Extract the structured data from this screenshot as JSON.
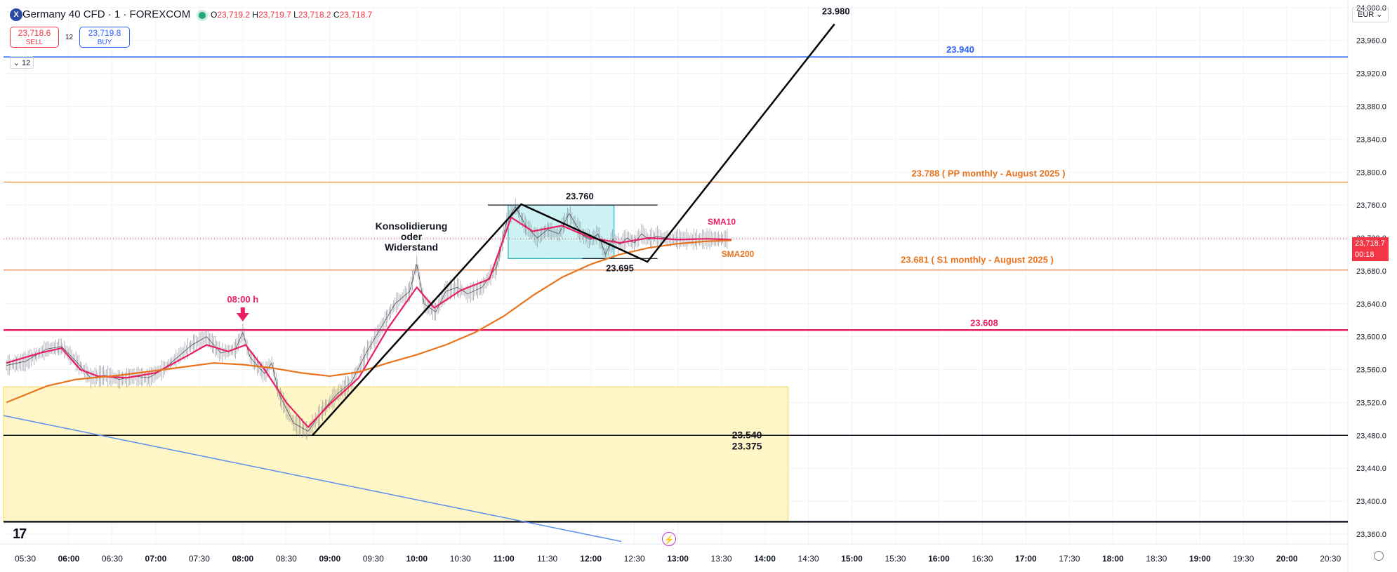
{
  "header": {
    "title": "Germany 40 CFD · 1 · FOREXCOM",
    "logo_letter": "X",
    "ohlc": {
      "o_label": "O",
      "o": "23,719.2",
      "h_label": "H",
      "h": "23,719.7",
      "l_label": "L",
      "l": "23,718.2",
      "c_label": "C",
      "c": "23,718.7"
    },
    "sell_price": "23,718.6",
    "sell_label": "SELL",
    "buy_price": "23,719.8",
    "buy_label": "BUY",
    "spread": "12",
    "interval": "12",
    "currency": "EUR"
  },
  "price_tag": {
    "price": "23,718.7",
    "countdown": "00:18",
    "color": "#f23645"
  },
  "chart_data": {
    "type": "line",
    "instrument": "Germany 40 CFD",
    "y_ticks": [
      "24,000.0",
      "23,960.0",
      "23,920.0",
      "23,880.0",
      "23,840.0",
      "23,800.0",
      "23,760.0",
      "23,720.0",
      "23,680.0",
      "23,640.0",
      "23,600.0",
      "23,560.0",
      "23,520.0",
      "23,480.0",
      "23,440.0",
      "23,400.0",
      "23,360.0"
    ],
    "ylim": [
      23348,
      24005
    ],
    "x_ticks": [
      "05:30",
      "06:00",
      "06:30",
      "07:00",
      "07:30",
      "08:00",
      "08:30",
      "09:00",
      "09:30",
      "10:00",
      "10:30",
      "11:00",
      "11:30",
      "12:00",
      "12:30",
      "13:00",
      "13:30",
      "14:00",
      "14:30",
      "15:00",
      "15:30",
      "16:00",
      "16:30",
      "17:00",
      "17:30",
      "18:00",
      "18:30",
      "19:00",
      "19:30",
      "20:00",
      "20:30"
    ],
    "x_tick_minutes": [
      330,
      360,
      390,
      420,
      450,
      480,
      510,
      540,
      570,
      600,
      630,
      660,
      690,
      720,
      750,
      780,
      810,
      840,
      870,
      900,
      930,
      960,
      990,
      1020,
      1050,
      1080,
      1110,
      1140,
      1170,
      1200,
      1230
    ],
    "xlim": [
      315,
      1242
    ],
    "price_series": {
      "color": "#787b86",
      "points": [
        [
          317,
          23565
        ],
        [
          330,
          23570
        ],
        [
          345,
          23585
        ],
        [
          355,
          23588
        ],
        [
          365,
          23570
        ],
        [
          375,
          23550
        ],
        [
          385,
          23553
        ],
        [
          395,
          23548
        ],
        [
          405,
          23552
        ],
        [
          415,
          23550
        ],
        [
          425,
          23560
        ],
        [
          435,
          23575
        ],
        [
          445,
          23590
        ],
        [
          455,
          23600
        ],
        [
          465,
          23580
        ],
        [
          475,
          23585
        ],
        [
          480,
          23605
        ],
        [
          485,
          23575
        ],
        [
          495,
          23555
        ],
        [
          500,
          23568
        ],
        [
          505,
          23530
        ],
        [
          515,
          23495
        ],
        [
          525,
          23485
        ],
        [
          535,
          23510
        ],
        [
          545,
          23530
        ],
        [
          555,
          23545
        ],
        [
          565,
          23580
        ],
        [
          575,
          23610
        ],
        [
          585,
          23640
        ],
        [
          595,
          23655
        ],
        [
          600,
          23688
        ],
        [
          605,
          23640
        ],
        [
          613,
          23630
        ],
        [
          620,
          23655
        ],
        [
          628,
          23660
        ],
        [
          635,
          23652
        ],
        [
          645,
          23660
        ],
        [
          655,
          23685
        ],
        [
          662,
          23740
        ],
        [
          668,
          23758
        ],
        [
          675,
          23735
        ],
        [
          683,
          23720
        ],
        [
          690,
          23730
        ],
        [
          698,
          23725
        ],
        [
          705,
          23750
        ],
        [
          710,
          23735
        ],
        [
          715,
          23722
        ],
        [
          720,
          23718
        ],
        [
          725,
          23725
        ],
        [
          730,
          23700
        ],
        [
          735,
          23718
        ],
        [
          740,
          23712
        ],
        [
          745,
          23720
        ],
        [
          750,
          23714
        ],
        [
          755,
          23725
        ],
        [
          760,
          23718
        ],
        [
          765,
          23722
        ],
        [
          775,
          23719
        ],
        [
          790,
          23718
        ],
        [
          805,
          23719
        ],
        [
          815,
          23718.7
        ]
      ]
    },
    "series": [
      {
        "name": "SMA10",
        "color": "#e91e63",
        "points": [
          [
            317,
            23568
          ],
          [
            340,
            23580
          ],
          [
            355,
            23586
          ],
          [
            368,
            23560
          ],
          [
            380,
            23552
          ],
          [
            400,
            23550
          ],
          [
            420,
            23556
          ],
          [
            440,
            23575
          ],
          [
            455,
            23590
          ],
          [
            470,
            23582
          ],
          [
            482,
            23590
          ],
          [
            495,
            23560
          ],
          [
            510,
            23520
          ],
          [
            525,
            23490
          ],
          [
            540,
            23518
          ],
          [
            560,
            23550
          ],
          [
            580,
            23610
          ],
          [
            600,
            23660
          ],
          [
            612,
            23635
          ],
          [
            630,
            23656
          ],
          [
            650,
            23670
          ],
          [
            665,
            23745
          ],
          [
            680,
            23728
          ],
          [
            700,
            23735
          ],
          [
            720,
            23720
          ],
          [
            740,
            23714
          ],
          [
            760,
            23720
          ],
          [
            780,
            23718
          ],
          [
            800,
            23719
          ],
          [
            817,
            23718
          ]
        ]
      },
      {
        "name": "SMA200",
        "color": "#e8731d",
        "points": [
          [
            317,
            23520
          ],
          [
            345,
            23540
          ],
          [
            365,
            23548
          ],
          [
            395,
            23553
          ],
          [
            430,
            23561
          ],
          [
            460,
            23568
          ],
          [
            480,
            23566
          ],
          [
            500,
            23562
          ],
          [
            520,
            23556
          ],
          [
            540,
            23552
          ],
          [
            560,
            23557
          ],
          [
            580,
            23568
          ],
          [
            600,
            23578
          ],
          [
            620,
            23590
          ],
          [
            640,
            23605
          ],
          [
            660,
            23625
          ],
          [
            680,
            23650
          ],
          [
            700,
            23672
          ],
          [
            720,
            23688
          ],
          [
            740,
            23700
          ],
          [
            760,
            23708
          ],
          [
            780,
            23713
          ],
          [
            800,
            23716
          ],
          [
            817,
            23717
          ]
        ]
      }
    ],
    "horizontal_lines": [
      {
        "price": 23940,
        "color": "#2962ff",
        "width": 1.5,
        "label": "23.940"
      },
      {
        "price": 23788,
        "color": "#e8731d",
        "width": 1,
        "label": "23.788 ( PP monthly - August 2025 )"
      },
      {
        "price": 23681,
        "color": "#e8731d",
        "width": 1,
        "label": "23.681 ( S1 monthly - August 2025 )"
      },
      {
        "price": 23608,
        "color": "#e91e63",
        "width": 2.5,
        "label": "23.608"
      },
      {
        "price": 23480,
        "color": "#131722",
        "width": 1.5,
        "label": ""
      },
      {
        "price": 23375,
        "color": "#131722",
        "width": 2.5,
        "label": ""
      }
    ],
    "label_23540": "23.540",
    "label_23375": "23.375",
    "current_price_line": {
      "price": 23718.7,
      "color": "#f23645"
    },
    "demand_zone": {
      "x1": 315,
      "x2": 856,
      "top": 23539,
      "bottom": 23375,
      "fill": "#fff6c7",
      "stroke": "#f1d462"
    },
    "consolidation_box": {
      "x1": 663,
      "x2": 736,
      "top": 23760,
      "bottom": 23695,
      "fill": "#b8ecf0",
      "stroke": "#26b0c2"
    },
    "box_levels": [
      {
        "x1": 649,
        "x2": 766,
        "price": 23760,
        "label": "23.760"
      },
      {
        "x1": 714,
        "x2": 766,
        "price": 23695,
        "label": "23.695"
      }
    ],
    "trend_lines": [
      {
        "color": "#000000",
        "width": 2.5,
        "points": [
          [
            528,
            23480
          ],
          [
            672,
            23761
          ],
          [
            759,
            23691
          ],
          [
            888,
            23980
          ]
        ]
      }
    ],
    "blue_trendline": {
      "color": "#5b8def",
      "points": [
        [
          315,
          23504
        ],
        [
          741,
          23351
        ]
      ]
    },
    "target_label": {
      "time": 888,
      "price": 23980,
      "text": "23.980"
    },
    "annotations": {
      "konsolidierung": [
        "Konsolidierung",
        "oder",
        "Widerstand"
      ],
      "sma10_label": "SMA10",
      "sma200_label": "SMA200",
      "marker_time": "08:00 h"
    }
  }
}
